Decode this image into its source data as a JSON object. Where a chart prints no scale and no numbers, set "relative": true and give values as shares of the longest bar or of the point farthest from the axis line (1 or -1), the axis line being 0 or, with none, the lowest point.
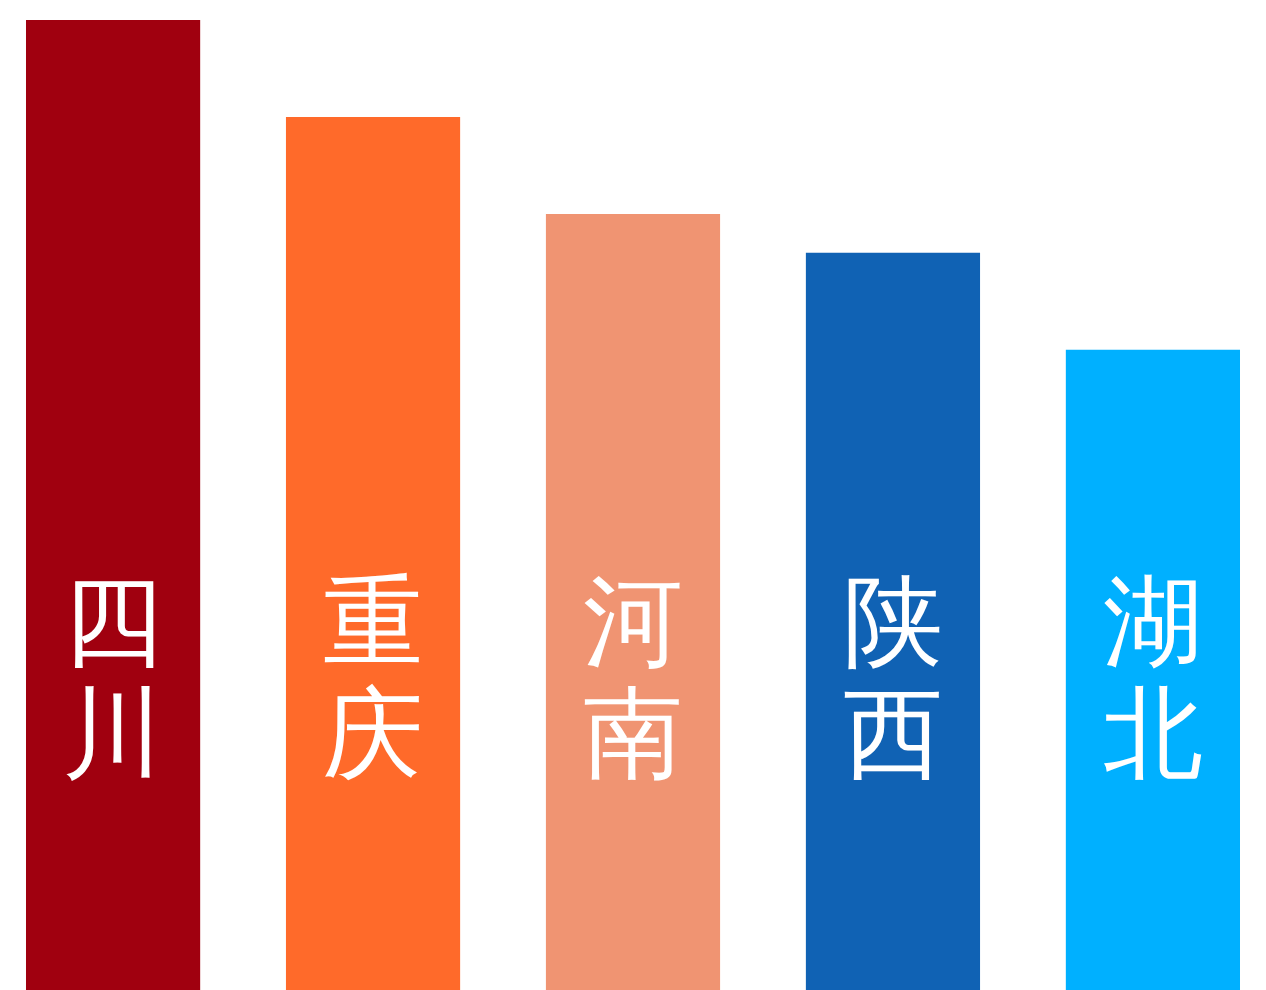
{
  "chart_data": {
    "type": "bar",
    "relative": true,
    "categories": [
      "四川",
      "重庆",
      "河南",
      "陕西",
      "湖北"
    ],
    "values": [
      1,
      0.9,
      0.8,
      0.76,
      0.66
    ],
    "colors": [
      "#a0000f",
      "#ff6a2a",
      "#f09472",
      "#1062b4",
      "#00b0ff"
    ]
  }
}
